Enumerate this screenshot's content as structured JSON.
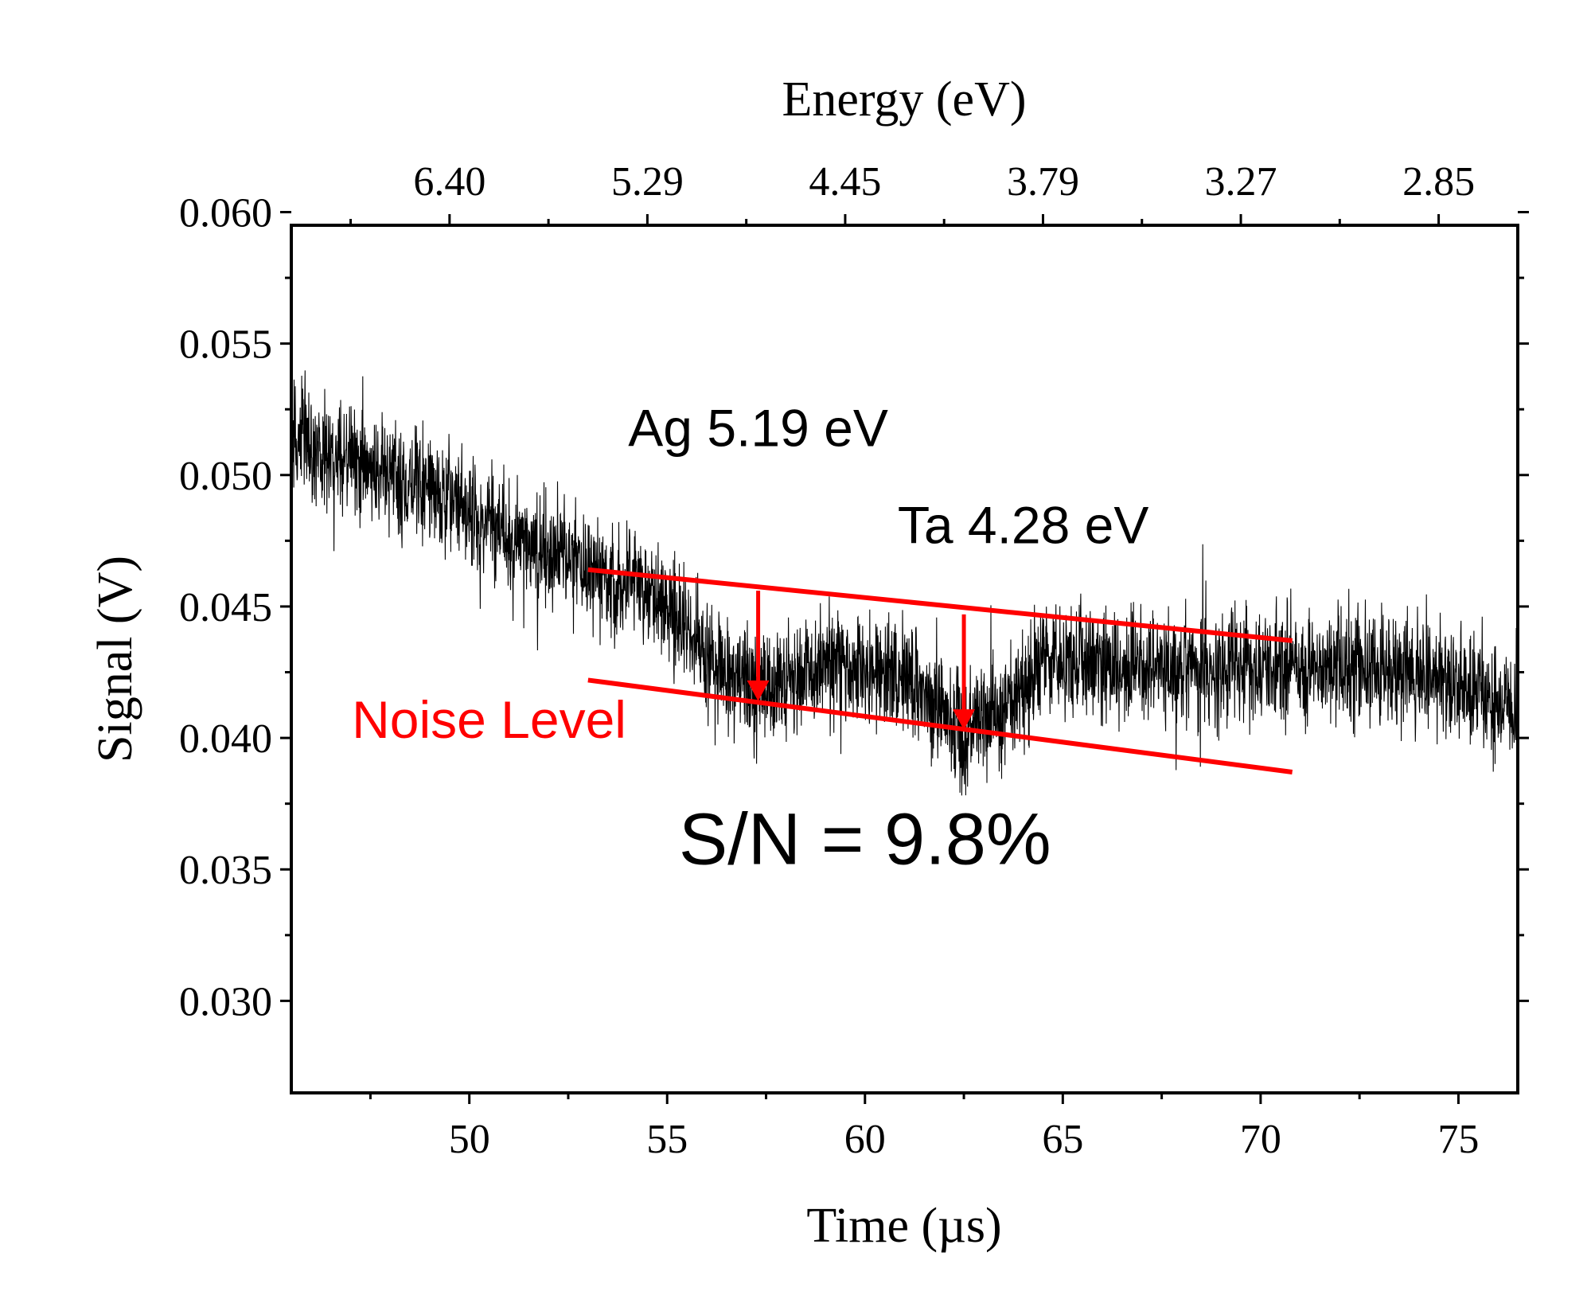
{
  "chart_data": {
    "type": "line",
    "title": "",
    "xlabel": "Time (µs)",
    "ylabel": "Signal (V)",
    "top_xlabel": "Energy (eV)",
    "xlim": [
      45.5,
      76.5
    ],
    "ylim": [
      0.0265,
      0.0595
    ],
    "x_ticks": [
      50,
      55,
      60,
      65,
      70,
      75
    ],
    "x_tick_labels": [
      "50",
      "55",
      "60",
      "65",
      "70",
      "75"
    ],
    "y_ticks": [
      0.03,
      0.035,
      0.04,
      0.045,
      0.05,
      0.055,
      0.06
    ],
    "y_tick_labels": [
      "0.030",
      "0.035",
      "0.040",
      "0.045",
      "0.050",
      "0.055",
      "0.060"
    ],
    "top_ticks": [
      49.5,
      54.5,
      59.5,
      64.5,
      69.5,
      74.5
    ],
    "top_tick_labels": [
      "6.40",
      "5.29",
      "4.45",
      "3.79",
      "3.27",
      "2.85"
    ],
    "series": [
      {
        "name": "Signal",
        "color": "#000000",
        "trend_x": [
          45.5,
          47.0,
          49.0,
          51.0,
          53.0,
          55.0,
          56.0,
          57.5,
          59.0,
          61.0,
          62.5,
          63.5,
          64.5,
          66.0,
          68.0,
          70.0,
          72.0,
          74.0,
          75.5,
          76.5
        ],
        "trend_y": [
          0.0515,
          0.0505,
          0.0495,
          0.0478,
          0.0465,
          0.045,
          0.043,
          0.0418,
          0.0427,
          0.0424,
          0.0402,
          0.0408,
          0.043,
          0.0428,
          0.0425,
          0.0428,
          0.0428,
          0.0426,
          0.042,
          0.0408
        ],
        "noise_amplitude": 0.0032,
        "samples": 4000
      }
    ],
    "annotations": [
      {
        "text": "Ag 5.19 eV",
        "x": 57.3,
        "y": 0.0511,
        "color": "#000000"
      },
      {
        "text": "Ta 4.28 eV",
        "x": 64.0,
        "y": 0.0474,
        "color": "#000000"
      },
      {
        "text": "Noise Level",
        "x": 50.5,
        "y": 0.04,
        "color": "#ff0000"
      },
      {
        "text": "S/N = 9.8%",
        "x": 60.0,
        "y": 0.0352,
        "color": "#000000"
      }
    ],
    "noise_lines": [
      {
        "x": [
          53.0,
          70.8
        ],
        "y": [
          0.0464,
          0.0437
        ],
        "color": "#ff0000"
      },
      {
        "x": [
          53.0,
          70.8
        ],
        "y": [
          0.0422,
          0.0387
        ],
        "color": "#ff0000"
      }
    ],
    "arrows": [
      {
        "x": 57.3,
        "y_from": 0.0456,
        "y_to": 0.0414,
        "color": "#ff0000"
      },
      {
        "x": 62.5,
        "y_from": 0.0447,
        "y_to": 0.0403,
        "color": "#ff0000"
      }
    ]
  }
}
